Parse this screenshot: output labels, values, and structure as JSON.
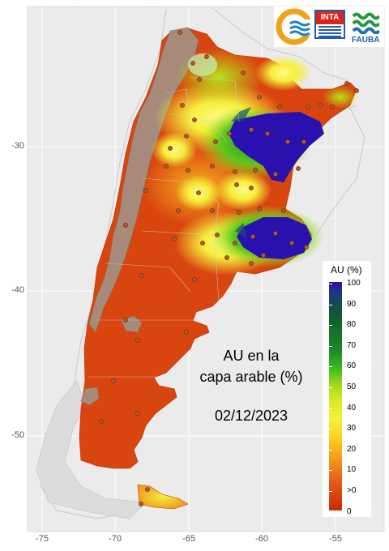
{
  "map": {
    "title_line1": "AU en la",
    "title_line2": "capa arable (%)",
    "date": "02/12/2023"
  },
  "axes": {
    "x_ticks": [
      "-75",
      "-70",
      "-65",
      "-60",
      "-55"
    ],
    "y_ticks": [
      "-30",
      "-40",
      "-50"
    ]
  },
  "legend": {
    "title": "AU (%)",
    "labels": [
      "100",
      "90",
      "80",
      "70",
      "60",
      "50",
      "40",
      "30",
      "20",
      "10",
      ">0",
      "0"
    ]
  },
  "logos": {
    "inta": "INTA",
    "fauba": "FAUBA"
  },
  "colors": {
    "background": "#ebebeb",
    "grid": "#ffffff",
    "dry": "#d9460f",
    "mountain": "#a88a78",
    "wet": "#2b10b0",
    "moderate": "#f4f046",
    "green": "#2fa81e"
  }
}
